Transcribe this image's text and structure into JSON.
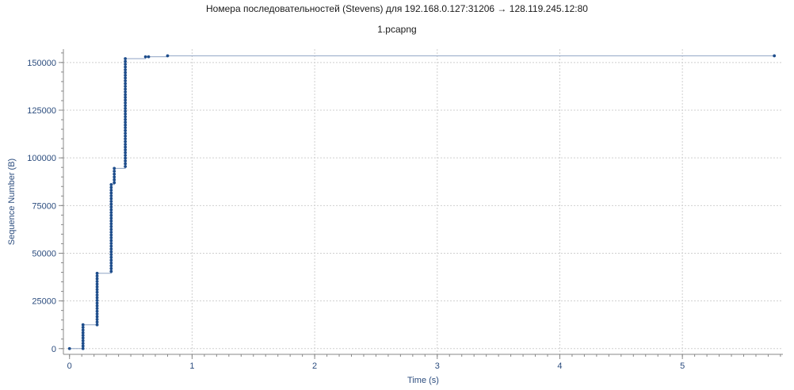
{
  "header": {
    "title": "Номера последовательностей (Stevens) для 192.168.0.127:31206 → 128.119.245.12:80",
    "subtitle": "1.pcapng"
  },
  "colors": {
    "axis_text": "#2b4c7e",
    "marker": "#1f4e8c",
    "line": "#8fa3c4",
    "grid": "#cfcfcf",
    "axis": "#888888"
  },
  "chart_data": {
    "type": "scatter",
    "title": "Номера последовательностей (Stevens) для 192.168.0.127:31206 → 128.119.245.12:80",
    "subtitle": "1.pcapng",
    "xlabel": "Time (s)",
    "ylabel": "Sequence Number (B)",
    "xlim": [
      -0.05,
      5.82
    ],
    "ylim": [
      -3000,
      157000
    ],
    "grid": true,
    "x_ticks": [
      {
        "value": 0,
        "label": "0"
      },
      {
        "value": 1,
        "label": "1"
      },
      {
        "value": 2,
        "label": "2"
      },
      {
        "value": 3,
        "label": "3"
      },
      {
        "value": 4,
        "label": "4"
      },
      {
        "value": 5,
        "label": "5"
      }
    ],
    "y_ticks": [
      {
        "value": 0,
        "label": "0"
      },
      {
        "value": 25000,
        "label": "25000"
      },
      {
        "value": 50000,
        "label": "50000"
      },
      {
        "value": 75000,
        "label": "75000"
      },
      {
        "value": 100000,
        "label": "100000"
      },
      {
        "value": 125000,
        "label": "125000"
      },
      {
        "value": 150000,
        "label": "150000"
      }
    ],
    "bursts": [
      {
        "x": 0.0,
        "y_start": 0,
        "y_end": 0,
        "count": 1
      },
      {
        "x": 0.11,
        "y_start": 0,
        "y_end": 12500,
        "count": 10
      },
      {
        "x": 0.225,
        "y_start": 12500,
        "y_end": 39500,
        "count": 20
      },
      {
        "x": 0.34,
        "y_start": 40500,
        "y_end": 86000,
        "count": 32
      },
      {
        "x": 0.365,
        "y_start": 87000,
        "y_end": 94500,
        "count": 6
      },
      {
        "x": 0.455,
        "y_start": 95500,
        "y_end": 152000,
        "count": 40
      },
      {
        "x": 0.62,
        "y_start": 153000,
        "y_end": 153000,
        "count": 1
      },
      {
        "x": 0.645,
        "y_start": 153000,
        "y_end": 153000,
        "count": 1
      },
      {
        "x": 0.8,
        "y_start": 153500,
        "y_end": 153500,
        "count": 1
      },
      {
        "x": 5.75,
        "y_start": 153500,
        "y_end": 153500,
        "count": 1
      }
    ]
  }
}
